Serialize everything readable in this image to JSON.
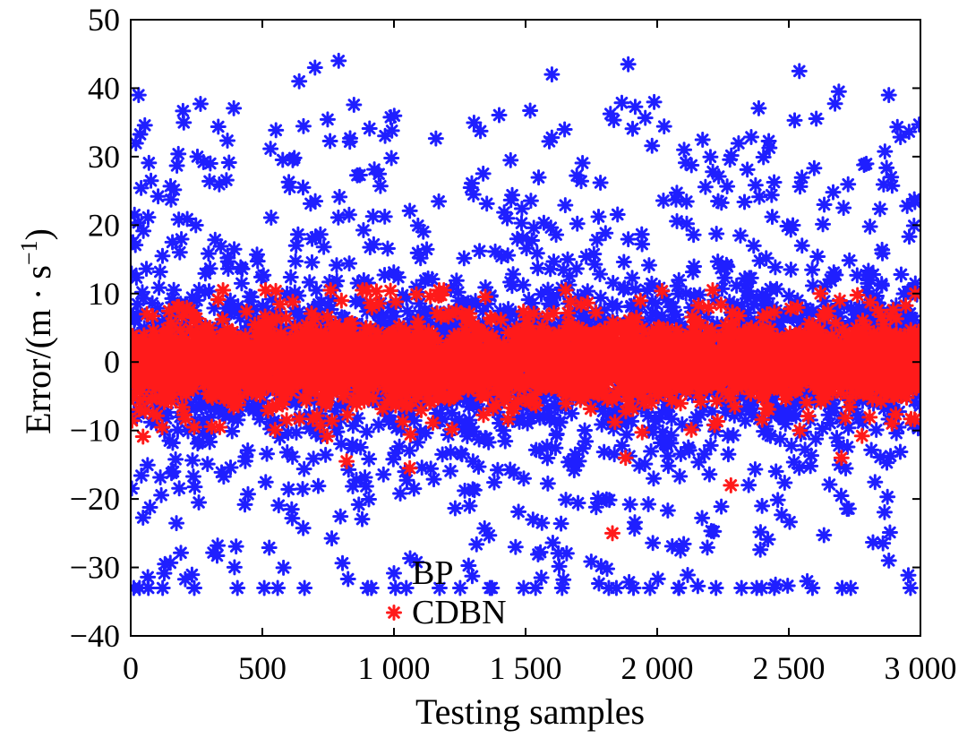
{
  "chart_data": {
    "type": "scatter",
    "title": "",
    "xlabel": "Testing samples",
    "ylabel_prefix": "Error/(m · s",
    "ylabel_exp": "−1",
    "ylabel_suffix": ")",
    "xlim": [
      0,
      3000
    ],
    "ylim": [
      -40,
      50
    ],
    "x_ticks": [
      0,
      500,
      1000,
      1500,
      2000,
      2500,
      3000
    ],
    "x_tick_labels": [
      "0",
      "500",
      "1 000",
      "1 500",
      "2 000",
      "2 500",
      "3 000"
    ],
    "y_ticks": [
      -40,
      -30,
      -20,
      -10,
      0,
      10,
      20,
      30,
      40,
      50
    ],
    "y_tick_labels": [
      "−40",
      "−30",
      "−20",
      "−10",
      "0",
      "10",
      "20",
      "30",
      "40",
      "50"
    ],
    "grid": false,
    "legend_position": "bottom-center",
    "marker": "asterisk",
    "series": [
      {
        "name": "BP",
        "color": "#1f1fff",
        "n_points": 3000,
        "distribution": "errors mostly within ±15, sparse outliers up to about ±44",
        "notable_points": [
          {
            "x": 30,
            "y": 39
          },
          {
            "x": 640,
            "y": 41
          },
          {
            "x": 700,
            "y": 43
          },
          {
            "x": 790,
            "y": 44
          },
          {
            "x": 1890,
            "y": 43.5
          },
          {
            "x": 2540,
            "y": 42.5
          },
          {
            "x": 2690,
            "y": 39.5
          },
          {
            "x": 2880,
            "y": 39
          },
          {
            "x": 1600,
            "y": 42
          },
          {
            "x": 1910,
            "y": -33
          },
          {
            "x": 2570,
            "y": -32
          },
          {
            "x": 1560,
            "y": -31.5
          },
          {
            "x": 130,
            "y": -29.5
          },
          {
            "x": 2880,
            "y": -29
          }
        ]
      },
      {
        "name": "CDBN",
        "color": "#ff1a1a",
        "n_points": 3000,
        "distribution": "errors concentrated within about ±8",
        "notable_points": [
          {
            "x": 1830,
            "y": -25
          },
          {
            "x": 2280,
            "y": -18
          },
          {
            "x": 1060,
            "y": -15.5
          },
          {
            "x": 820,
            "y": -14.5
          },
          {
            "x": 1880,
            "y": -14
          },
          {
            "x": 2700,
            "y": -14
          },
          {
            "x": 2620,
            "y": 10
          },
          {
            "x": 2980,
            "y": 10
          }
        ]
      }
    ]
  }
}
